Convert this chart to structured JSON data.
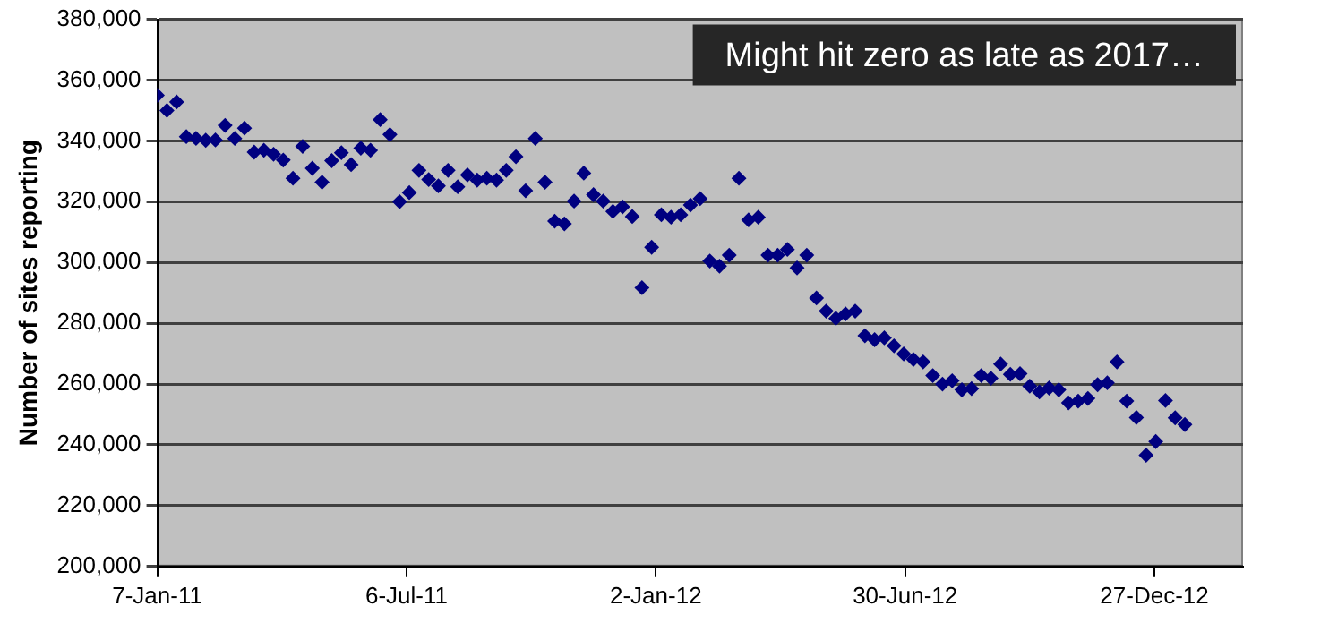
{
  "chart_data": {
    "type": "scatter",
    "ylabel": "Number of sites reporting",
    "annotations": [
      "Might hit zero as late as 2017…"
    ],
    "x": [
      "2011-01-07",
      "2011-01-14",
      "2011-01-21",
      "2011-01-28",
      "2011-02-04",
      "2011-02-11",
      "2011-02-18",
      "2011-02-25",
      "2011-03-04",
      "2011-03-11",
      "2011-03-18",
      "2011-03-25",
      "2011-04-01",
      "2011-04-08",
      "2011-04-15",
      "2011-04-22",
      "2011-04-29",
      "2011-05-06",
      "2011-05-13",
      "2011-05-20",
      "2011-05-27",
      "2011-06-03",
      "2011-06-10",
      "2011-06-17",
      "2011-06-24",
      "2011-07-01",
      "2011-07-08",
      "2011-07-15",
      "2011-07-22",
      "2011-07-29",
      "2011-08-05",
      "2011-08-12",
      "2011-08-19",
      "2011-08-26",
      "2011-09-02",
      "2011-09-09",
      "2011-09-16",
      "2011-09-23",
      "2011-09-30",
      "2011-10-07",
      "2011-10-14",
      "2011-10-21",
      "2011-10-28",
      "2011-11-04",
      "2011-11-11",
      "2011-11-18",
      "2011-11-25",
      "2011-12-02",
      "2011-12-09",
      "2011-12-16",
      "2011-12-23",
      "2011-12-30",
      "2012-01-06",
      "2012-01-13",
      "2012-01-20",
      "2012-01-27",
      "2012-02-03",
      "2012-02-10",
      "2012-02-17",
      "2012-02-24",
      "2012-03-02",
      "2012-03-09",
      "2012-03-16",
      "2012-03-23",
      "2012-03-30",
      "2012-04-06",
      "2012-04-13",
      "2012-04-20",
      "2012-04-27",
      "2012-05-04",
      "2012-05-11",
      "2012-05-18",
      "2012-05-25",
      "2012-06-01",
      "2012-06-08",
      "2012-06-15",
      "2012-06-22",
      "2012-06-29",
      "2012-07-06",
      "2012-07-13",
      "2012-07-20",
      "2012-07-27",
      "2012-08-03",
      "2012-08-10",
      "2012-08-17",
      "2012-08-24",
      "2012-08-31",
      "2012-09-07",
      "2012-09-14",
      "2012-09-21",
      "2012-09-28",
      "2012-10-05",
      "2012-10-12",
      "2012-10-19",
      "2012-10-26",
      "2012-11-02",
      "2012-11-09",
      "2012-11-16",
      "2012-11-23",
      "2012-11-30",
      "2012-12-07",
      "2012-12-14",
      "2012-12-21",
      "2012-12-28",
      "2013-01-04",
      "2013-01-11",
      "2013-01-18"
    ],
    "series": [
      {
        "color": "#000080",
        "values": [
          355000,
          350000,
          352800,
          341400,
          340800,
          340200,
          340300,
          345100,
          340800,
          344200,
          336300,
          336900,
          335600,
          333700,
          327700,
          338200,
          331000,
          326400,
          333500,
          336100,
          332200,
          337600,
          336900,
          347000,
          342100,
          320000,
          323000,
          330300,
          327300,
          325200,
          330300,
          324900,
          328800,
          327100,
          327700,
          327100,
          330300,
          334800,
          323600,
          340800,
          326400,
          313600,
          312700,
          320200,
          329400,
          322300,
          320200,
          316800,
          318300,
          315100,
          291700,
          305000,
          315700,
          314900,
          315700,
          318900,
          321000,
          300500,
          298800,
          302400,
          327700,
          314000,
          314900,
          302400,
          302400,
          304300,
          298200,
          302400,
          288300,
          284000,
          281600,
          283100,
          284000,
          275900,
          274600,
          275200,
          272600,
          269900,
          268100,
          267300,
          262800,
          260000,
          261100,
          258100,
          258500,
          262800,
          261900,
          266600,
          263200,
          263400,
          259300,
          257400,
          258700,
          258100,
          253800,
          254400,
          255300,
          259800,
          260400,
          267300,
          254400,
          249000,
          236600,
          241100,
          254600,
          248900,
          246700
        ]
      }
    ],
    "xlim": [
      "2011-01-07",
      "2013-03-01"
    ],
    "xticks": [
      {
        "value": "2011-01-07",
        "label": "7-Jan-11"
      },
      {
        "value": "2011-07-06",
        "label": "6-Jul-11"
      },
      {
        "value": "2012-01-02",
        "label": "2-Jan-12"
      },
      {
        "value": "2012-06-30",
        "label": "30-Jun-12"
      },
      {
        "value": "2012-12-27",
        "label": "27-Dec-12"
      }
    ],
    "ylim": [
      200000,
      380000
    ],
    "yticks": [
      {
        "value": 200000,
        "label": "200,000"
      },
      {
        "value": 220000,
        "label": "220,000"
      },
      {
        "value": 240000,
        "label": "240,000"
      },
      {
        "value": 260000,
        "label": "260,000"
      },
      {
        "value": 280000,
        "label": "280,000"
      },
      {
        "value": 300000,
        "label": "300,000"
      },
      {
        "value": 320000,
        "label": "320,000"
      },
      {
        "value": 340000,
        "label": "340,000"
      },
      {
        "value": 360000,
        "label": "360,000"
      },
      {
        "value": 380000,
        "label": "380,000"
      }
    ],
    "grid": "y",
    "legend": false,
    "marker": "diamond"
  }
}
